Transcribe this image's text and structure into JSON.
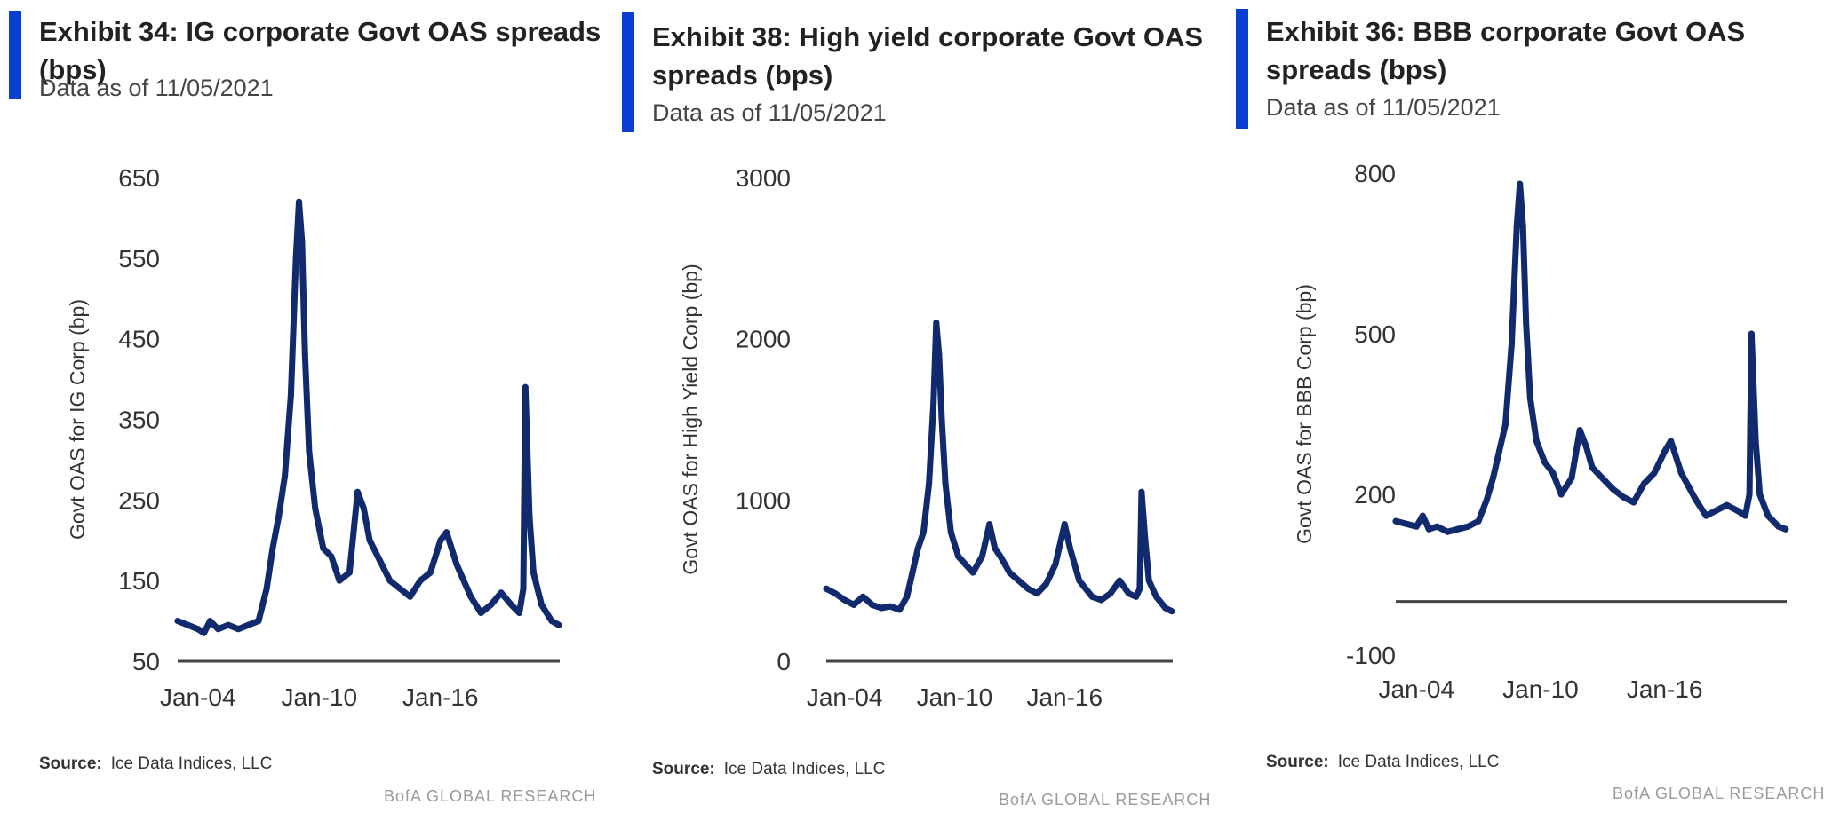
{
  "exhibits": [
    {
      "title": "Exhibit 34: IG corporate Govt OAS spreads (bps)",
      "subtitle": "Data as of 11/05/2021",
      "source_label": "Source:",
      "source_text": "Ice Data Indices, LLC",
      "brand": "BofA GLOBAL RESEARCH"
    },
    {
      "title": "Exhibit 38: High yield corporate Govt OAS spreads (bps)",
      "subtitle": "Data as of 11/05/2021",
      "source_label": "Source:",
      "source_text": "Ice Data Indices, LLC",
      "brand": "BofA GLOBAL RESEARCH"
    },
    {
      "title": "Exhibit 36: BBB corporate Govt OAS spreads (bps)",
      "subtitle": "Data as of 11/05/2021",
      "source_label": "Source:",
      "source_text": "Ice Data Indices, LLC",
      "brand": "BofA GLOBAL RESEARCH"
    }
  ],
  "colors": {
    "line": "#112a6e",
    "accent": "#0a3fd3",
    "axis": "#444444"
  },
  "chart_data": [
    {
      "type": "line",
      "title": "Exhibit 34: IG corporate Govt OAS spreads (bps)",
      "ylabel": "Govt OAS for IG Corp (bp)",
      "xlabel": "",
      "ylim": [
        50,
        650
      ],
      "yticks": [
        50,
        150,
        250,
        350,
        450,
        550,
        650
      ],
      "ytick_labels": [
        "50",
        "150",
        "250",
        "350",
        "450",
        "550",
        "650"
      ],
      "xlim": [
        2003.0,
        2021.9
      ],
      "xticks": [
        2004.0,
        2010.0,
        2016.0
      ],
      "xtick_labels": [
        "Jan-04",
        "Jan-10",
        "Jan-16"
      ],
      "series": [
        {
          "name": "IG Corp Govt OAS",
          "x": [
            2003.0,
            2003.5,
            2004.0,
            2004.3,
            2004.6,
            2005.0,
            2005.5,
            2006.0,
            2006.5,
            2007.0,
            2007.4,
            2007.7,
            2008.0,
            2008.3,
            2008.6,
            2008.85,
            2009.0,
            2009.15,
            2009.3,
            2009.5,
            2009.8,
            2010.2,
            2010.6,
            2011.0,
            2011.5,
            2011.9,
            2012.2,
            2012.5,
            2013.0,
            2013.5,
            2014.0,
            2014.5,
            2015.0,
            2015.5,
            2016.0,
            2016.3,
            2016.8,
            2017.5,
            2018.0,
            2018.5,
            2019.0,
            2019.5,
            2019.9,
            2020.1,
            2020.2,
            2020.4,
            2020.6,
            2021.0,
            2021.5,
            2021.85
          ],
          "y": [
            100,
            95,
            90,
            85,
            100,
            90,
            95,
            90,
            95,
            100,
            140,
            190,
            230,
            280,
            380,
            550,
            620,
            570,
            430,
            310,
            240,
            190,
            180,
            150,
            160,
            260,
            240,
            200,
            175,
            150,
            140,
            130,
            150,
            160,
            200,
            210,
            170,
            130,
            110,
            120,
            135,
            120,
            110,
            140,
            390,
            230,
            160,
            120,
            100,
            95
          ]
        }
      ]
    },
    {
      "type": "line",
      "title": "Exhibit 38: High yield corporate Govt OAS spreads (bps)",
      "ylabel": "Govt OAS for High Yield Corp (bp)",
      "xlabel": "",
      "ylim": [
        0,
        3000
      ],
      "yticks": [
        0,
        1000,
        2000,
        3000
      ],
      "ytick_labels": [
        "0",
        "1000",
        "2000",
        "3000"
      ],
      "xlim": [
        2003.0,
        2021.9
      ],
      "xticks": [
        2004.0,
        2010.0,
        2016.0
      ],
      "xtick_labels": [
        "Jan-04",
        "Jan-10",
        "Jan-16"
      ],
      "series": [
        {
          "name": "HY Corp Govt OAS",
          "x": [
            2003.0,
            2003.5,
            2004.0,
            2004.5,
            2005.0,
            2005.5,
            2006.0,
            2006.5,
            2007.0,
            2007.4,
            2007.7,
            2008.0,
            2008.3,
            2008.6,
            2008.85,
            2009.0,
            2009.15,
            2009.3,
            2009.5,
            2009.8,
            2010.2,
            2010.6,
            2011.0,
            2011.5,
            2011.9,
            2012.2,
            2012.5,
            2013.0,
            2013.5,
            2014.0,
            2014.5,
            2015.0,
            2015.5,
            2016.0,
            2016.3,
            2016.8,
            2017.5,
            2018.0,
            2018.5,
            2019.0,
            2019.5,
            2019.9,
            2020.1,
            2020.2,
            2020.4,
            2020.6,
            2021.0,
            2021.5,
            2021.85
          ],
          "y": [
            450,
            420,
            380,
            350,
            400,
            350,
            330,
            340,
            320,
            400,
            550,
            700,
            800,
            1100,
            1600,
            2100,
            1900,
            1500,
            1100,
            800,
            650,
            600,
            550,
            650,
            850,
            700,
            650,
            550,
            500,
            450,
            420,
            480,
            600,
            850,
            700,
            500,
            400,
            380,
            420,
            500,
            420,
            400,
            450,
            1050,
            750,
            500,
            400,
            330,
            310
          ]
        }
      ]
    },
    {
      "type": "line",
      "title": "Exhibit 36: BBB corporate Govt OAS spreads (bps)",
      "ylabel": "Govt OAS for BBB Corp (bp)",
      "xlabel": "",
      "ylim": [
        -100,
        800
      ],
      "yticks": [
        -100,
        200,
        500,
        800
      ],
      "ytick_labels": [
        "-100",
        "200",
        "500",
        "800"
      ],
      "xlim": [
        2003.0,
        2021.9
      ],
      "xticks": [
        2004.0,
        2010.0,
        2016.0
      ],
      "xtick_labels": [
        "Jan-04",
        "Jan-10",
        "Jan-16"
      ],
      "series": [
        {
          "name": "BBB Corp Govt OAS",
          "x": [
            2003.0,
            2003.5,
            2004.0,
            2004.3,
            2004.6,
            2005.0,
            2005.5,
            2006.0,
            2006.5,
            2007.0,
            2007.4,
            2007.7,
            2008.0,
            2008.3,
            2008.6,
            2008.85,
            2009.0,
            2009.15,
            2009.3,
            2009.5,
            2009.8,
            2010.2,
            2010.6,
            2011.0,
            2011.5,
            2011.9,
            2012.2,
            2012.5,
            2013.0,
            2013.5,
            2014.0,
            2014.5,
            2015.0,
            2015.5,
            2016.0,
            2016.3,
            2016.8,
            2017.5,
            2018.0,
            2018.5,
            2019.0,
            2019.5,
            2019.9,
            2020.1,
            2020.2,
            2020.4,
            2020.6,
            2021.0,
            2021.5,
            2021.85
          ],
          "y": [
            150,
            145,
            140,
            160,
            135,
            140,
            130,
            135,
            140,
            150,
            190,
            230,
            280,
            330,
            480,
            700,
            780,
            700,
            520,
            380,
            300,
            260,
            240,
            200,
            230,
            320,
            290,
            250,
            230,
            210,
            195,
            185,
            220,
            240,
            280,
            300,
            240,
            190,
            160,
            170,
            180,
            170,
            160,
            200,
            500,
            300,
            200,
            160,
            140,
            135
          ]
        }
      ]
    }
  ]
}
